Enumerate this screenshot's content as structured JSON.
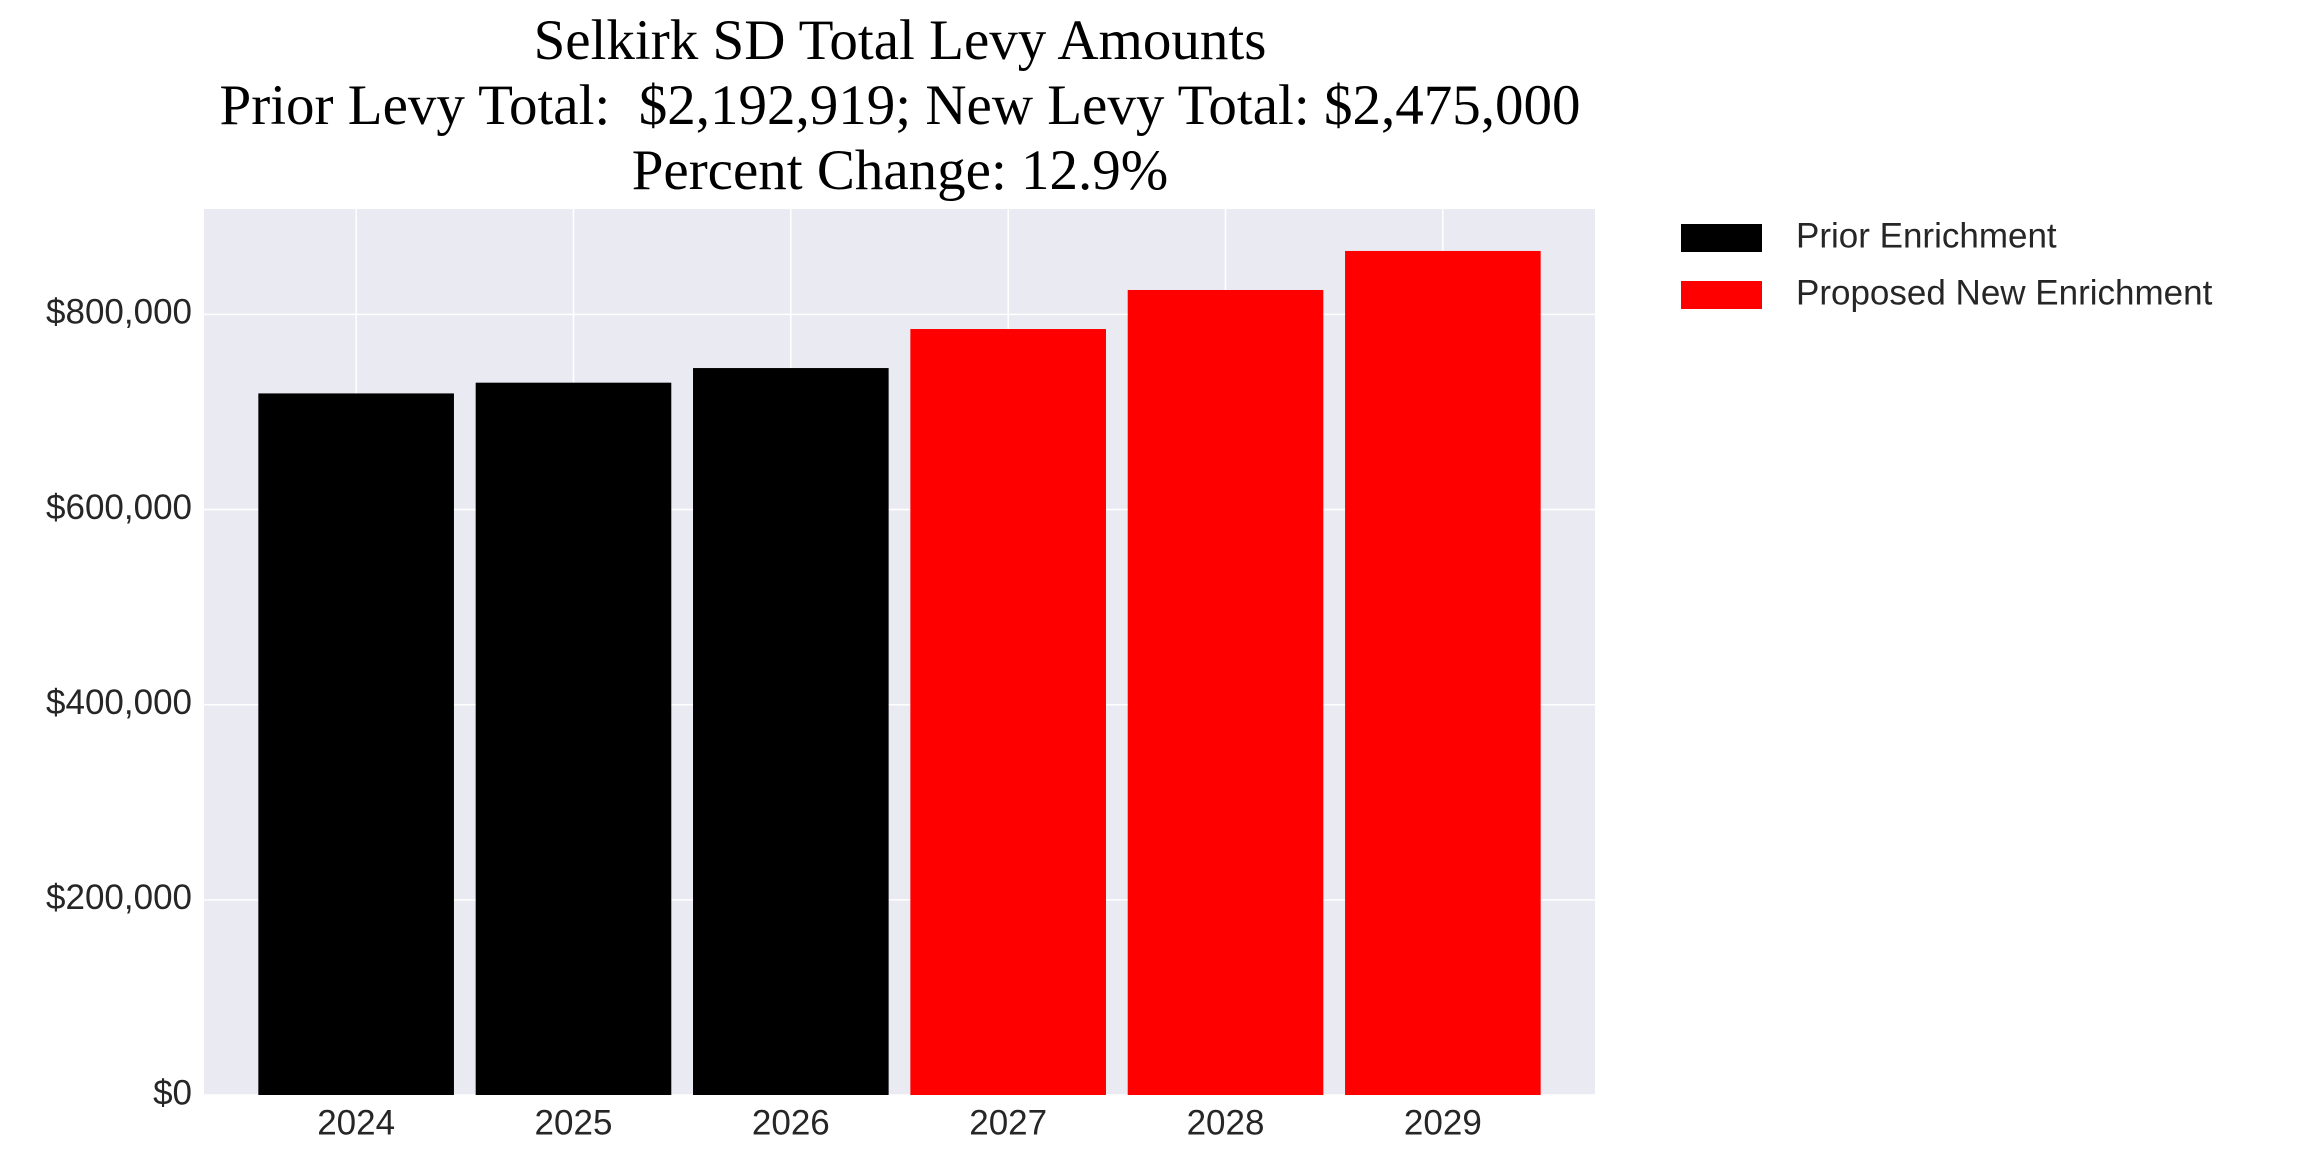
{
  "chart_data": {
    "type": "bar",
    "title": [
      "Selkirk SD Total Levy Amounts",
      "Prior Levy Total:  $2,192,919; New Levy Total: $2,475,000",
      "Percent Change: 12.9%"
    ],
    "categories": [
      "2024",
      "2025",
      "2026",
      "2027",
      "2028",
      "2029"
    ],
    "series": [
      {
        "name": "Prior Enrichment",
        "color": "#000000",
        "values": [
          719000,
          730000,
          745000,
          null,
          null,
          null
        ]
      },
      {
        "name": "Proposed New Enrichment",
        "color": "#ff0000",
        "values": [
          null,
          null,
          null,
          785000,
          825000,
          865000
        ]
      }
    ],
    "ylim": [
      0,
      908000
    ],
    "yticks": [
      {
        "value": 0,
        "label": "$0"
      },
      {
        "value": 200000,
        "label": "$200,000"
      },
      {
        "value": 400000,
        "label": "$400,000"
      },
      {
        "value": 600000,
        "label": "$600,000"
      },
      {
        "value": 800000,
        "label": "$800,000"
      }
    ],
    "grid": true,
    "legend": "outside-right"
  }
}
